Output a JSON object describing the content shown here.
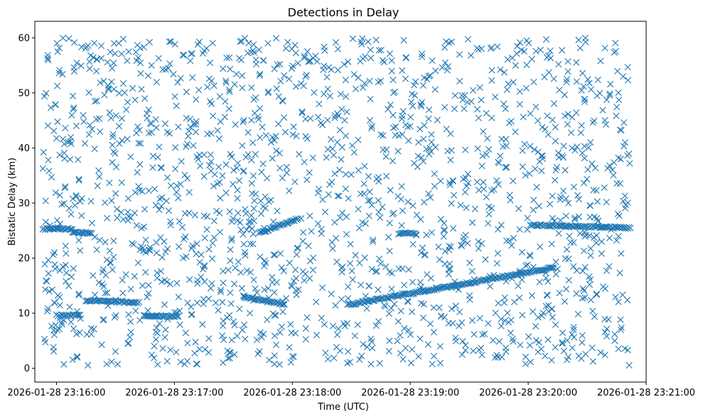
{
  "chart_data": {
    "type": "scatter",
    "title": "Detections in Delay",
    "xlabel": "Time (UTC)",
    "ylabel": "Bistatic Delay (km)",
    "marker": "x",
    "color": "#1f77b4",
    "grid": false,
    "legend": "none",
    "xlim": [
      "2026-01-28 23:15:49",
      "2026-01-28 23:21:00"
    ],
    "ylim": [
      -2.5,
      63.0
    ],
    "x_ticks": [
      "2026-01-28 23:16:00",
      "2026-01-28 23:17:00",
      "2026-01-28 23:18:00",
      "2026-01-28 23:19:00",
      "2026-01-28 23:20:00",
      "2026-01-28 23:21:00"
    ],
    "y_ticks": [
      "0",
      "10",
      "20",
      "30",
      "40",
      "50",
      "60"
    ],
    "time_range": [
      "2026-01-28 23:15:53",
      "2026-01-28 23:20:52"
    ],
    "background_noise": {
      "delay_range_km": [
        0.5,
        60
      ],
      "approx_points": 1700
    },
    "tracks": [
      {
        "time_start": "2026-01-28 23:16:15",
        "time_end": "2026-01-28 23:16:42",
        "delay_start": 12.3,
        "delay_end": 11.9
      },
      {
        "time_start": "2026-01-28 23:16:00",
        "time_end": "2026-01-28 23:16:12",
        "delay_start": 9.6,
        "delay_end": 9.6
      },
      {
        "time_start": "2026-01-28 23:16:45",
        "time_end": "2026-01-28 23:17:02",
        "delay_start": 9.5,
        "delay_end": 9.5
      },
      {
        "time_start": "2026-01-28 23:17:35",
        "time_end": "2026-01-28 23:17:56",
        "delay_start": 13.0,
        "delay_end": 11.6
      },
      {
        "time_start": "2026-01-28 23:18:28",
        "time_end": "2026-01-28 23:20:13",
        "delay_start": 11.5,
        "delay_end": 18.3
      },
      {
        "time_start": "2026-01-28 23:17:43",
        "time_end": "2026-01-28 23:18:03",
        "delay_start": 24.5,
        "delay_end": 27.2
      },
      {
        "time_start": "2026-01-28 23:15:53",
        "time_end": "2026-01-28 23:16:08",
        "delay_start": 25.3,
        "delay_end": 25.3
      },
      {
        "time_start": "2026-01-28 23:16:08",
        "time_end": "2026-01-28 23:16:18",
        "delay_start": 24.6,
        "delay_end": 24.6
      },
      {
        "time_start": "2026-01-28 23:20:01",
        "time_end": "2026-01-28 23:20:52",
        "delay_start": 26.0,
        "delay_end": 25.5
      },
      {
        "time_start": "2026-01-28 23:18:54",
        "time_end": "2026-01-28 23:19:03",
        "delay_start": 24.5,
        "delay_end": 24.5
      }
    ]
  }
}
